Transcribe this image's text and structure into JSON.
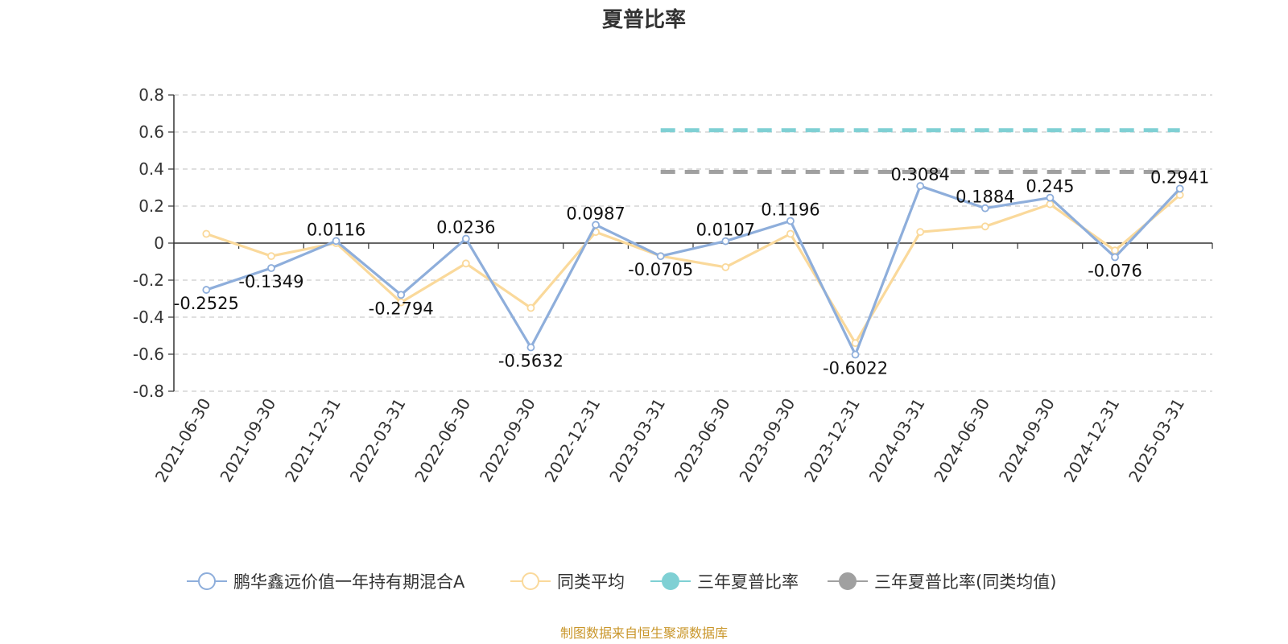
{
  "chart_data": {
    "type": "line",
    "title": "夏普比率",
    "categories": [
      "2021-06-30",
      "2021-09-30",
      "2021-12-31",
      "2022-03-31",
      "2022-06-30",
      "2022-09-30",
      "2022-12-31",
      "2023-03-31",
      "2023-06-30",
      "2023-09-30",
      "2023-12-31",
      "2024-03-31",
      "2024-06-30",
      "2024-09-30",
      "2024-12-31",
      "2025-03-31"
    ],
    "ylim": [
      -0.8,
      0.8
    ],
    "yticks": [
      "0.8",
      "0.6",
      "0.4",
      "0.2",
      "0",
      "-0.2",
      "-0.4",
      "-0.6",
      "-0.8"
    ],
    "grid": true,
    "legend_position": "bottom",
    "series": [
      {
        "name": "鹏华鑫远价值一年持有期混合A",
        "color": "#8eaedb",
        "values": [
          -0.2525,
          -0.1349,
          0.0116,
          -0.2794,
          0.0236,
          -0.5632,
          0.0987,
          -0.0705,
          0.0107,
          0.1196,
          -0.6022,
          0.3084,
          0.1884,
          0.245,
          -0.076,
          0.2941
        ],
        "labels": [
          "-0.2525",
          "-0.1349",
          "0.0116",
          "-0.2794",
          "0.0236",
          "-0.5632",
          "0.0987",
          "-0.0705",
          "0.0107",
          "0.1196",
          "-0.6022",
          "0.3084",
          "0.1884",
          "0.245",
          "-0.076",
          "0.2941"
        ]
      },
      {
        "name": "同类平均",
        "color": "#fad99b",
        "values": [
          0.05,
          -0.07,
          0.0,
          -0.32,
          -0.11,
          -0.35,
          0.06,
          -0.07,
          -0.13,
          0.05,
          -0.54,
          0.06,
          0.09,
          0.21,
          -0.04,
          0.26
        ]
      },
      {
        "name": "三年夏普比率",
        "color": "#7fd0d4",
        "style": "dashed",
        "x_start": "2023-03-31",
        "x_end": "2025-03-31",
        "value": 0.61
      },
      {
        "name": "三年夏普比率(同类均值)",
        "color": "#a0a0a0",
        "style": "dashed",
        "x_start": "2023-03-31",
        "x_end": "2025-03-31",
        "value": 0.385
      }
    ]
  },
  "source_text": "制图数据来自恒生聚源数据库"
}
